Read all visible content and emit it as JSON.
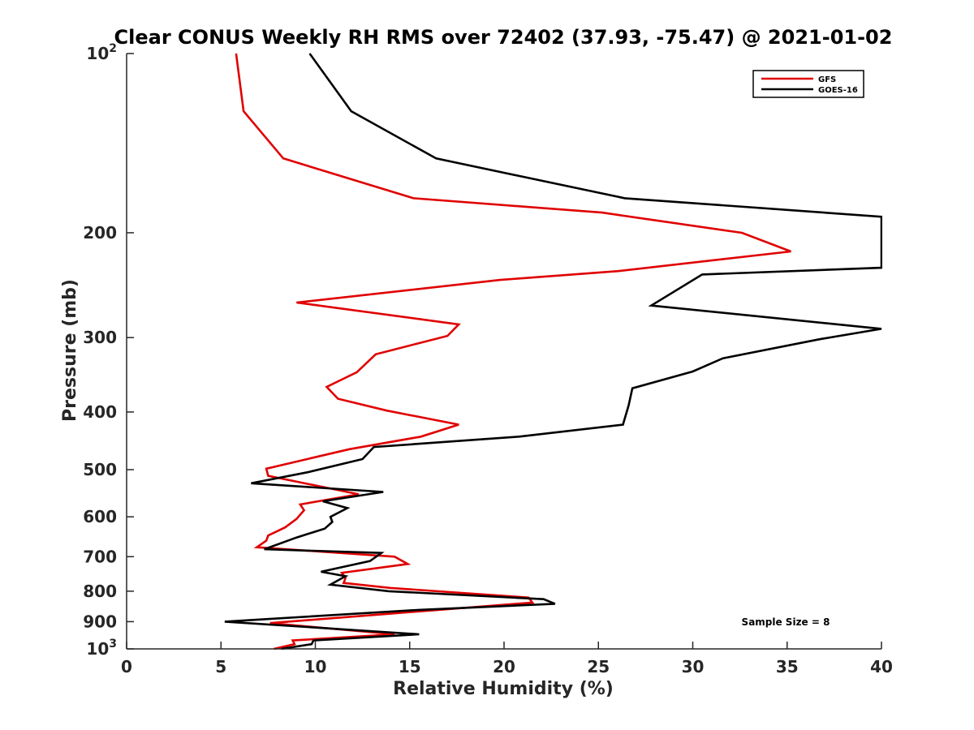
{
  "chart_data": {
    "type": "line",
    "title": "Clear CONUS Weekly RH RMS over 72402 (37.93, -75.47) @ 2021-01-02",
    "xlabel": "Relative Humidity (%)",
    "ylabel": "Pressure (mb)",
    "xlim": [
      0,
      40
    ],
    "ylim": [
      100,
      1000
    ],
    "yscale": "log",
    "yreversed": true,
    "xticks": [
      0,
      5,
      10,
      15,
      20,
      25,
      30,
      35,
      40
    ],
    "xtick_labels": [
      "0",
      "5",
      "10",
      "15",
      "20",
      "25",
      "30",
      "35",
      "40"
    ],
    "yticks": [
      100,
      200,
      300,
      400,
      500,
      600,
      700,
      800,
      900,
      1000
    ],
    "ytick_labels": [
      {
        "base": "10",
        "exp": "2"
      },
      {
        "base": "200",
        "exp": ""
      },
      {
        "base": "300",
        "exp": ""
      },
      {
        "base": "400",
        "exp": ""
      },
      {
        "base": "500",
        "exp": ""
      },
      {
        "base": "600",
        "exp": ""
      },
      {
        "base": "700",
        "exp": ""
      },
      {
        "base": "800",
        "exp": ""
      },
      {
        "base": "900",
        "exp": ""
      },
      {
        "base": "10",
        "exp": "3"
      }
    ],
    "legend": "top-right",
    "annotation": "Sample Size = 8",
    "series": [
      {
        "name": "GFS",
        "color": "#e00000",
        "points": [
          [
            5.8,
            100
          ],
          [
            6.2,
            125
          ],
          [
            8.3,
            150
          ],
          [
            15.2,
            175
          ],
          [
            25.2,
            185
          ],
          [
            32.6,
            200
          ],
          [
            35.2,
            215
          ],
          [
            26.0,
            232
          ],
          [
            19.8,
            240
          ],
          [
            9.0,
            262
          ],
          [
            17.6,
            285
          ],
          [
            17.0,
            298
          ],
          [
            13.2,
            320
          ],
          [
            12.2,
            343
          ],
          [
            10.6,
            363
          ],
          [
            11.2,
            380
          ],
          [
            13.8,
            398
          ],
          [
            17.6,
            420
          ],
          [
            15.6,
            440
          ],
          [
            11.8,
            462
          ],
          [
            7.4,
            498
          ],
          [
            7.5,
            512
          ],
          [
            12.3,
            550
          ],
          [
            9.2,
            572
          ],
          [
            9.4,
            585
          ],
          [
            9.0,
            605
          ],
          [
            8.4,
            625
          ],
          [
            7.5,
            645
          ],
          [
            7.4,
            658
          ],
          [
            6.9,
            675
          ],
          [
            14.2,
            700
          ],
          [
            14.9,
            720
          ],
          [
            11.4,
            745
          ],
          [
            11.6,
            760
          ],
          [
            11.5,
            775
          ],
          [
            14.0,
            790
          ],
          [
            21.3,
            820
          ],
          [
            21.5,
            836
          ],
          [
            13.5,
            875
          ],
          [
            7.6,
            905
          ],
          [
            14.2,
            945
          ],
          [
            8.8,
            968
          ],
          [
            8.9,
            982
          ],
          [
            7.8,
            1000
          ]
        ]
      },
      {
        "name": "GOES-16",
        "color": "#000000",
        "points": [
          [
            9.7,
            100
          ],
          [
            11.9,
            125
          ],
          [
            16.4,
            150
          ],
          [
            26.4,
            175
          ],
          [
            40.0,
            188
          ],
          [
            40.0,
            229
          ],
          [
            30.5,
            235
          ],
          [
            27.8,
            265
          ],
          [
            40.0,
            290
          ],
          [
            36.7,
            302
          ],
          [
            31.6,
            325
          ],
          [
            30.0,
            342
          ],
          [
            26.8,
            365
          ],
          [
            26.6,
            390
          ],
          [
            26.3,
            420
          ],
          [
            20.8,
            440
          ],
          [
            13.1,
            458
          ],
          [
            12.5,
            480
          ],
          [
            9.6,
            505
          ],
          [
            6.6,
            527
          ],
          [
            13.6,
            545
          ],
          [
            10.4,
            565
          ],
          [
            11.7,
            580
          ],
          [
            10.8,
            600
          ],
          [
            10.9,
            612
          ],
          [
            10.5,
            628
          ],
          [
            9.0,
            650
          ],
          [
            7.3,
            680
          ],
          [
            13.5,
            690
          ],
          [
            12.9,
            712
          ],
          [
            10.3,
            742
          ],
          [
            11.6,
            755
          ],
          [
            10.8,
            780
          ],
          [
            13.9,
            800
          ],
          [
            22.1,
            825
          ],
          [
            22.7,
            840
          ],
          [
            15.5,
            860
          ],
          [
            5.2,
            900
          ],
          [
            15.5,
            945
          ],
          [
            9.9,
            968
          ],
          [
            9.8,
            982
          ],
          [
            8.2,
            1000
          ]
        ]
      }
    ]
  }
}
